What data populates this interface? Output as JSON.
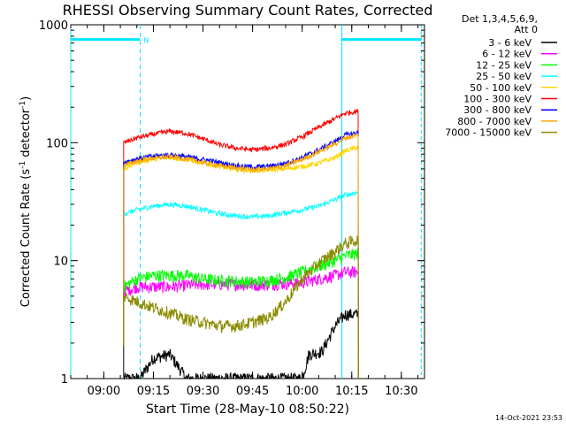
{
  "chart_data": {
    "type": "line",
    "title": "RHESSI Observing Summary Count Rates, Corrected",
    "xlabel": "Start Time (28-May-10 08:50:22)",
    "ylabel_main": "Corrected Count Rate (s",
    "ylabel_sup1": "-1",
    "ylabel_mid": " detector",
    "ylabel_sup2": "-1",
    "ylabel_end": ")",
    "y_scale": "log",
    "ylim": [
      1,
      1000
    ],
    "xlim_minutes": [
      0,
      107
    ],
    "x_tick_minutes": [
      10,
      25,
      40,
      55,
      70,
      85,
      100
    ],
    "x_tick_labels": [
      "09:00",
      "09:15",
      "09:30",
      "09:45",
      "10:00",
      "10:15",
      "10:30"
    ],
    "y_tick_values": [
      1,
      10,
      100,
      1000
    ],
    "y_tick_labels": [
      "1",
      "10",
      "100",
      "1000"
    ],
    "legend_header": [
      "Det 1,3,4,5,6,9,",
      "Att 0"
    ],
    "legend_position": "right",
    "night_markers_minutes": [
      0,
      82,
      106
    ],
    "saa_markers_minutes": [
      21,
      82
    ],
    "night_bar_label": "N",
    "night_bar_value": 750,
    "footer_timestamp": "14-Oct-2021 23:53",
    "data_start_minute": 16,
    "data_end_minute": 87,
    "series": [
      {
        "name": "3 - 6 keV",
        "color": "#000000",
        "points": [
          [
            16,
            1
          ],
          [
            21,
            1
          ],
          [
            25,
            1.5
          ],
          [
            30,
            1.6
          ],
          [
            35,
            1
          ],
          [
            70,
            1
          ],
          [
            72,
            1.6
          ],
          [
            76,
            1.7
          ],
          [
            80,
            2.8
          ],
          [
            83,
            3.5
          ],
          [
            87,
            3.5
          ]
        ]
      },
      {
        "name": "6 - 12 keV",
        "color": "#ff00ff",
        "points": [
          [
            16,
            5.5
          ],
          [
            20,
            6
          ],
          [
            25,
            6
          ],
          [
            30,
            6
          ],
          [
            35,
            6.2
          ],
          [
            40,
            6.3
          ],
          [
            45,
            6.3
          ],
          [
            50,
            6.3
          ],
          [
            55,
            6.2
          ],
          [
            60,
            6.3
          ],
          [
            65,
            6.4
          ],
          [
            70,
            6.5
          ],
          [
            75,
            7
          ],
          [
            80,
            7.5
          ],
          [
            83,
            8
          ],
          [
            87,
            8
          ]
        ]
      },
      {
        "name": "12 - 25 keV",
        "color": "#00ff00",
        "points": [
          [
            16,
            6
          ],
          [
            20,
            7
          ],
          [
            25,
            7.5
          ],
          [
            30,
            7.5
          ],
          [
            35,
            7.5
          ],
          [
            40,
            7
          ],
          [
            45,
            6.8
          ],
          [
            50,
            6.7
          ],
          [
            55,
            6.6
          ],
          [
            60,
            6.8
          ],
          [
            65,
            7.2
          ],
          [
            70,
            8
          ],
          [
            75,
            9
          ],
          [
            80,
            10
          ],
          [
            83,
            11
          ],
          [
            87,
            11.5
          ]
        ]
      },
      {
        "name": "25 - 50 keV",
        "color": "#00ffff",
        "points": [
          [
            16,
            25
          ],
          [
            20,
            27
          ],
          [
            25,
            29
          ],
          [
            30,
            30
          ],
          [
            35,
            29
          ],
          [
            40,
            27
          ],
          [
            45,
            25
          ],
          [
            50,
            24
          ],
          [
            55,
            23.5
          ],
          [
            60,
            24
          ],
          [
            65,
            25.5
          ],
          [
            70,
            27
          ],
          [
            75,
            29
          ],
          [
            80,
            33
          ],
          [
            83,
            36
          ],
          [
            87,
            38
          ]
        ]
      },
      {
        "name": "50 - 100 keV",
        "color": "#ffd700",
        "points": [
          [
            16,
            60
          ],
          [
            20,
            68
          ],
          [
            25,
            73
          ],
          [
            30,
            75
          ],
          [
            35,
            72
          ],
          [
            40,
            67
          ],
          [
            45,
            63
          ],
          [
            50,
            59
          ],
          [
            55,
            58
          ],
          [
            60,
            59
          ],
          [
            65,
            60
          ],
          [
            70,
            63
          ],
          [
            75,
            67
          ],
          [
            80,
            75
          ],
          [
            83,
            85
          ],
          [
            87,
            92
          ]
        ]
      },
      {
        "name": "100 - 300 keV",
        "color": "#ff0000",
        "points": [
          [
            16,
            100
          ],
          [
            20,
            110
          ],
          [
            25,
            118
          ],
          [
            30,
            125
          ],
          [
            35,
            120
          ],
          [
            40,
            108
          ],
          [
            45,
            96
          ],
          [
            50,
            90
          ],
          [
            55,
            87
          ],
          [
            60,
            90
          ],
          [
            65,
            97
          ],
          [
            70,
            112
          ],
          [
            75,
            135
          ],
          [
            80,
            160
          ],
          [
            83,
            178
          ],
          [
            87,
            185
          ]
        ]
      },
      {
        "name": "300 - 800 keV",
        "color": "#0000ff",
        "points": [
          [
            16,
            68
          ],
          [
            20,
            73
          ],
          [
            25,
            77
          ],
          [
            30,
            79
          ],
          [
            35,
            76
          ],
          [
            40,
            72
          ],
          [
            45,
            68
          ],
          [
            50,
            64
          ],
          [
            55,
            62
          ],
          [
            60,
            63
          ],
          [
            65,
            67
          ],
          [
            70,
            75
          ],
          [
            75,
            87
          ],
          [
            80,
            103
          ],
          [
            83,
            116
          ],
          [
            87,
            122
          ]
        ]
      },
      {
        "name": "800 - 7000 keV",
        "color": "#ffa500",
        "points": [
          [
            16,
            64
          ],
          [
            20,
            70
          ],
          [
            25,
            74
          ],
          [
            30,
            76
          ],
          [
            35,
            73
          ],
          [
            40,
            68
          ],
          [
            45,
            64
          ],
          [
            50,
            61
          ],
          [
            55,
            59
          ],
          [
            60,
            60
          ],
          [
            65,
            64
          ],
          [
            70,
            72
          ],
          [
            75,
            84
          ],
          [
            80,
            98
          ],
          [
            83,
            110
          ],
          [
            87,
            116
          ]
        ]
      },
      {
        "name": "7000 - 15000 keV",
        "color": "#8b8b00",
        "points": [
          [
            16,
            5
          ],
          [
            20,
            4.5
          ],
          [
            25,
            4
          ],
          [
            30,
            3.6
          ],
          [
            35,
            3.2
          ],
          [
            40,
            3
          ],
          [
            45,
            2.8
          ],
          [
            50,
            2.8
          ],
          [
            55,
            3
          ],
          [
            60,
            3.3
          ],
          [
            65,
            4.5
          ],
          [
            70,
            7
          ],
          [
            75,
            9.5
          ],
          [
            80,
            12
          ],
          [
            83,
            14
          ],
          [
            87,
            15
          ]
        ]
      }
    ]
  }
}
